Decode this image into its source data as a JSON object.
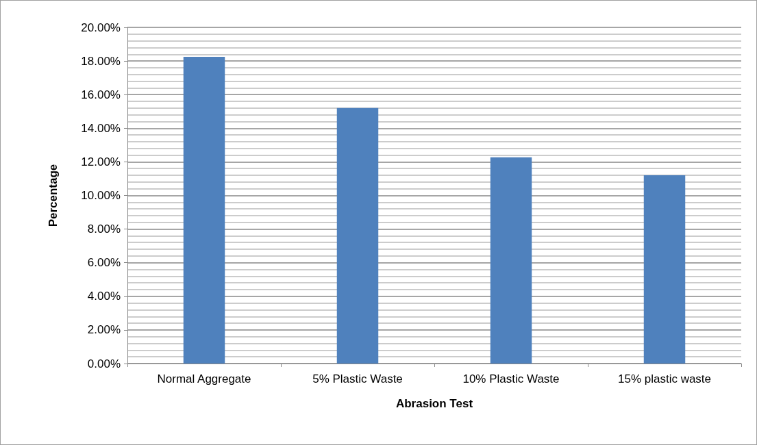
{
  "chart_data": {
    "type": "bar",
    "xlabel": "Abrasion Test",
    "ylabel": "Percentage",
    "categories": [
      "Normal Aggregate",
      "5% Plastic Waste",
      "10% Plastic Waste",
      "15% plastic waste"
    ],
    "values": [
      18.25,
      15.2,
      12.27,
      11.2
    ],
    "color": "#4f81bd",
    "ylim": [
      0,
      20
    ],
    "yticks": [
      {
        "value": 0,
        "label": "0.00%"
      },
      {
        "value": 2,
        "label": "2.00%"
      },
      {
        "value": 4,
        "label": "4.00%"
      },
      {
        "value": 6,
        "label": "6.00%"
      },
      {
        "value": 8,
        "label": "8.00%"
      },
      {
        "value": 10,
        "label": "10.00%"
      },
      {
        "value": 12,
        "label": "12.00%"
      },
      {
        "value": 14,
        "label": "14.00%"
      },
      {
        "value": 16,
        "label": "16.00%"
      },
      {
        "value": 18,
        "label": "18.00%"
      },
      {
        "value": 20,
        "label": "20.00%"
      }
    ],
    "grid": true
  }
}
